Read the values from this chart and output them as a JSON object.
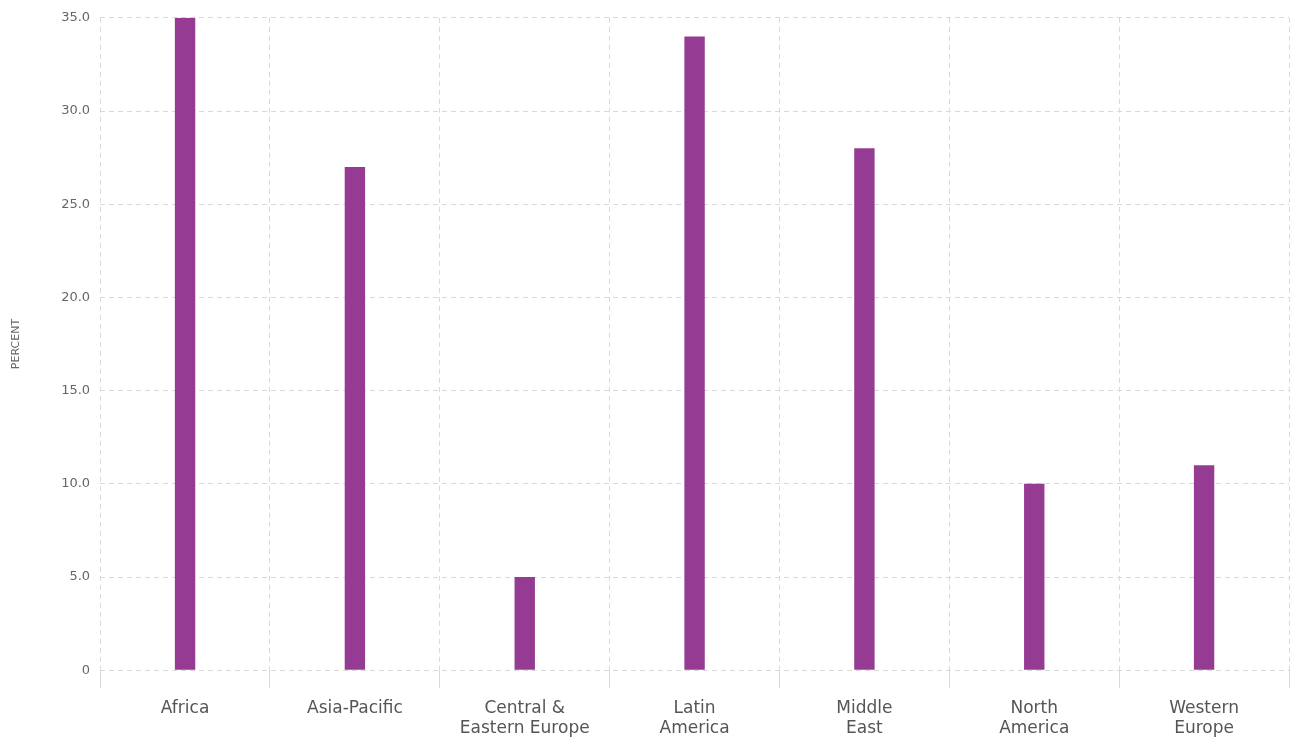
{
  "chart_data": {
    "type": "bar",
    "ylabel": "PERCENT",
    "categories": [
      "Africa",
      "Asia-Pacific",
      "Central & Eastern Europe",
      "Latin America",
      "Middle East",
      "North America",
      "Western Europe"
    ],
    "values": [
      35,
      27,
      5,
      34,
      28,
      10,
      11
    ],
    "color": "#953b93",
    "ylim": [
      0,
      35
    ],
    "yticks": [
      {
        "value": 0,
        "label": "0"
      },
      {
        "value": 5,
        "label": "5.0"
      },
      {
        "value": 10,
        "label": "10.0"
      },
      {
        "value": 15,
        "label": "15.0"
      },
      {
        "value": 20,
        "label": "20.0"
      },
      {
        "value": 25,
        "label": "25.0"
      },
      {
        "value": 30,
        "label": "30.0"
      },
      {
        "value": 35,
        "label": "35.0"
      }
    ],
    "grid": true,
    "legend": false
  }
}
